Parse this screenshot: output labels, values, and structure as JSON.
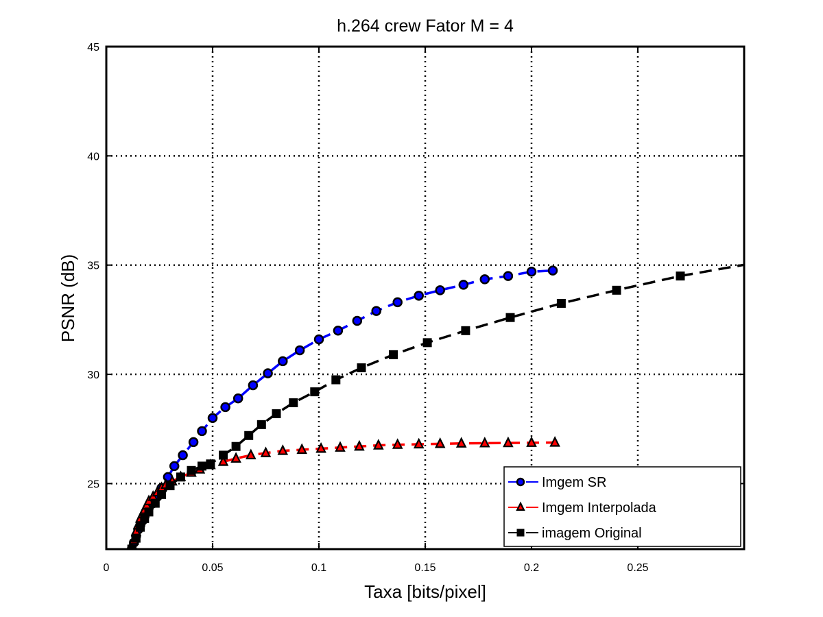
{
  "chart_data": {
    "type": "line",
    "title": "h.264 crew Fator M = 4",
    "xlabel": "Taxa [bits/pixel]",
    "ylabel": "PSNR (dB)",
    "xlim": [
      0,
      0.3
    ],
    "ylim": [
      22,
      45
    ],
    "xticks": [
      0,
      0.05,
      0.1,
      0.15,
      0.2,
      0.25
    ],
    "xtick_labels": [
      "0",
      "0.05",
      "0.1",
      "0.15",
      "0.2",
      "0.25"
    ],
    "yticks": [
      25,
      30,
      35,
      40,
      45
    ],
    "ytick_labels": [
      "25",
      "30",
      "35",
      "40",
      "45"
    ],
    "grid": true,
    "legend_position": "bottom-right",
    "series": [
      {
        "name": "Imgem SR",
        "color": "#0000ff",
        "marker": "circle",
        "line_style": "dashed",
        "x": [
          0.012,
          0.013,
          0.014,
          0.015,
          0.016,
          0.017,
          0.018,
          0.019,
          0.02,
          0.022,
          0.024,
          0.026,
          0.029,
          0.032,
          0.036,
          0.041,
          0.045,
          0.05,
          0.056,
          0.062,
          0.069,
          0.076,
          0.083,
          0.091,
          0.1,
          0.109,
          0.118,
          0.127,
          0.137,
          0.147,
          0.157,
          0.168,
          0.178,
          0.189,
          0.2,
          0.21
        ],
        "y": [
          22.0,
          22.3,
          22.6,
          22.9,
          23.1,
          23.3,
          23.5,
          23.7,
          23.9,
          24.1,
          24.4,
          24.8,
          25.3,
          25.8,
          26.3,
          26.9,
          27.4,
          28.0,
          28.5,
          28.9,
          29.5,
          30.05,
          30.6,
          31.1,
          31.6,
          32.0,
          32.45,
          32.9,
          33.3,
          33.6,
          33.85,
          34.1,
          34.35,
          34.5,
          34.7,
          34.75
        ]
      },
      {
        "name": "Imgem Interpolada",
        "color": "#ff0000",
        "marker": "triangle",
        "line_style": "dashed",
        "x": [
          0.012,
          0.013,
          0.014,
          0.015,
          0.016,
          0.017,
          0.018,
          0.019,
          0.02,
          0.022,
          0.024,
          0.026,
          0.028,
          0.031,
          0.035,
          0.04,
          0.044,
          0.049,
          0.055,
          0.061,
          0.068,
          0.075,
          0.083,
          0.092,
          0.101,
          0.11,
          0.119,
          0.128,
          0.137,
          0.147,
          0.157,
          0.167,
          0.178,
          0.189,
          0.2,
          0.211
        ],
        "y": [
          22.0,
          22.4,
          22.8,
          23.1,
          23.4,
          23.6,
          23.8,
          24.0,
          24.2,
          24.4,
          24.6,
          24.8,
          24.95,
          25.1,
          25.3,
          25.5,
          25.65,
          25.85,
          26.0,
          26.15,
          26.3,
          26.4,
          26.5,
          26.55,
          26.6,
          26.65,
          26.7,
          26.75,
          26.78,
          26.8,
          26.82,
          26.84,
          26.85,
          26.86,
          26.87,
          26.88
        ]
      },
      {
        "name": "imagem Original",
        "color": "#000000",
        "marker": "square",
        "line_style": "dashed",
        "x": [
          0.012,
          0.014,
          0.016,
          0.018,
          0.02,
          0.023,
          0.026,
          0.03,
          0.035,
          0.04,
          0.045,
          0.049,
          0.055,
          0.061,
          0.067,
          0.073,
          0.08,
          0.088,
          0.098,
          0.108,
          0.12,
          0.135,
          0.151,
          0.169,
          0.19,
          0.214,
          0.24,
          0.27,
          0.305
        ],
        "y": [
          22.0,
          22.5,
          23.0,
          23.4,
          23.7,
          24.1,
          24.5,
          24.9,
          25.3,
          25.6,
          25.8,
          25.9,
          26.3,
          26.7,
          27.2,
          27.7,
          28.2,
          28.7,
          29.2,
          29.75,
          30.3,
          30.9,
          31.45,
          32.0,
          32.6,
          33.25,
          33.85,
          34.5,
          35.1
        ]
      }
    ]
  }
}
